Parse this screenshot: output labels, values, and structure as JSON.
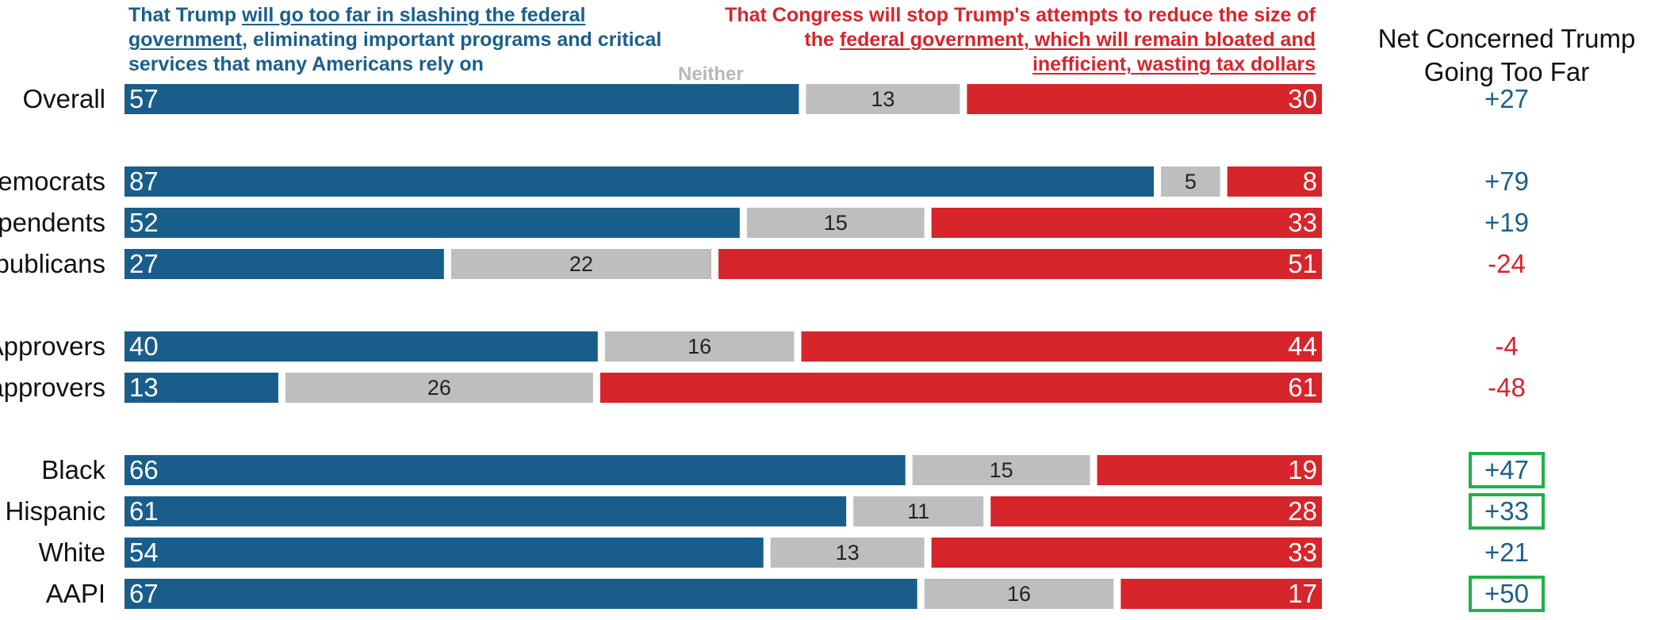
{
  "header": {
    "left_pre": "That Trump ",
    "left_underlined": "will go too far in slashing the federal government",
    "left_post": ", eliminating important programs and critical services that many Americans rely on",
    "neither": "Neither",
    "right_pre": "That Congress will stop Trump's attempts to reduce the size of the ",
    "right_underlined": "federal government, which will remain bloated and inefficient, wasting tax dollars",
    "net_title": "Net Concerned Trump Going Too Far"
  },
  "colors": {
    "trump_too_far": "#195e8b",
    "neither": "#bebebe",
    "congress_stop": "#d6252b",
    "net_positive": "#1a5f8c",
    "net_negative": "#d6252b",
    "highlight_box": "#22b04a"
  },
  "chart_data": {
    "type": "bar",
    "orientation": "horizontal",
    "stacked": true,
    "categories": [
      "Overall",
      "Democrats",
      "Independents",
      "Republicans",
      "Approvers",
      "Disapprovers",
      "Black",
      "Hispanic",
      "White",
      "AAPI"
    ],
    "series": [
      {
        "name": "That Trump will go too far in slashing the federal government, eliminating important programs and critical services that many Americans rely on",
        "values": [
          57,
          87,
          52,
          27,
          40,
          13,
          66,
          61,
          54,
          67
        ]
      },
      {
        "name": "Neither",
        "values": [
          13,
          5,
          15,
          22,
          16,
          26,
          15,
          11,
          13,
          16
        ]
      },
      {
        "name": "That Congress will stop Trump's attempts to reduce the size of the federal government, which will remain bloated and inefficient, wasting tax dollars",
        "values": [
          30,
          8,
          33,
          51,
          44,
          61,
          19,
          28,
          33,
          17
        ]
      }
    ],
    "net": [
      "+27",
      "+79",
      "+19",
      "-24",
      "-4",
      "-48",
      "+47",
      "+33",
      "+21",
      "+50"
    ],
    "net_highlighted": [
      false,
      false,
      false,
      false,
      false,
      false,
      true,
      true,
      false,
      true
    ],
    "xlim": [
      0,
      100
    ]
  }
}
